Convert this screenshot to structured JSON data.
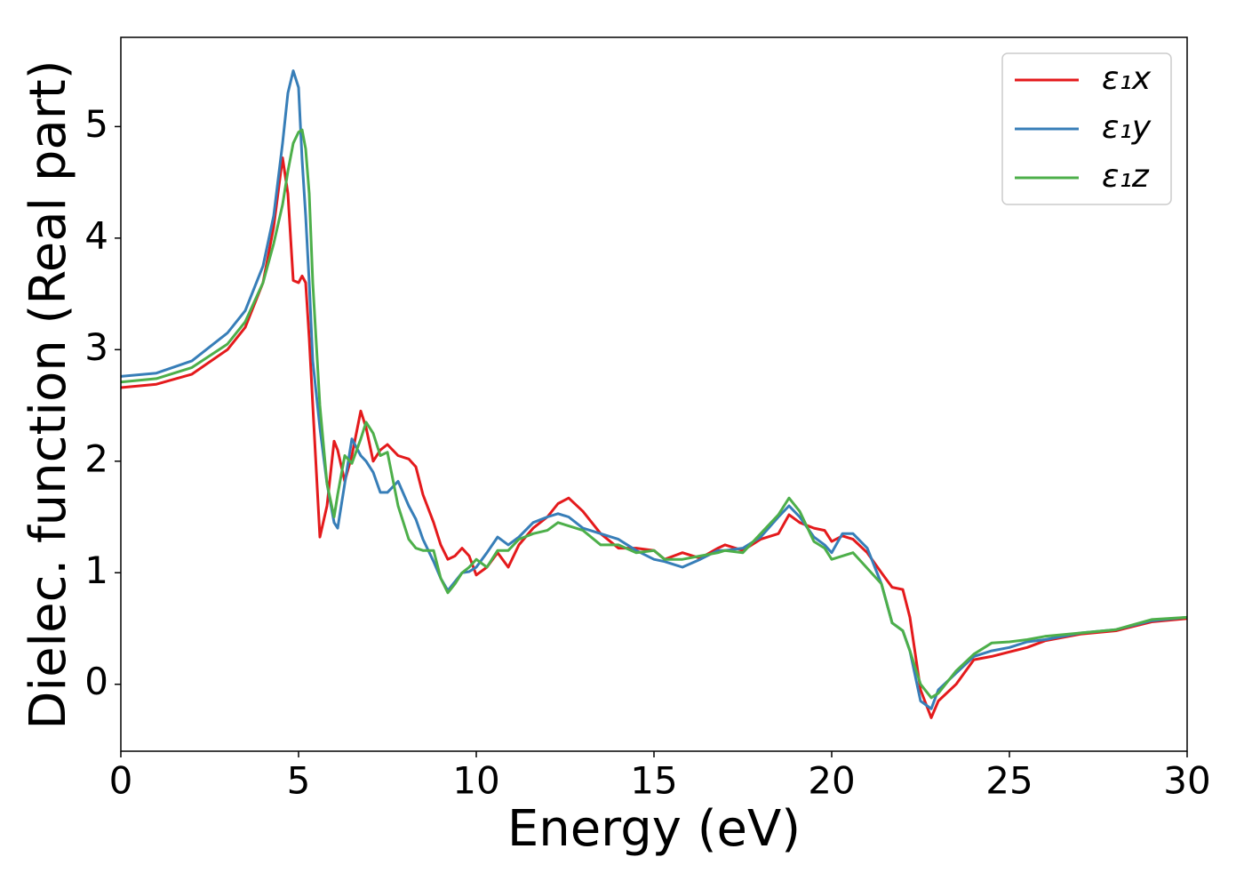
{
  "chart_data": {
    "type": "line",
    "xlabel": "Energy (eV)",
    "ylabel": "Dielec. function (Real part)",
    "x": [
      0,
      1,
      2,
      3,
      3.5,
      4,
      4.3,
      4.55,
      4.7,
      4.85,
      5.0,
      5.1,
      5.2,
      5.3,
      5.4,
      5.6,
      5.8,
      6.0,
      6.1,
      6.3,
      6.5,
      6.75,
      6.9,
      7.1,
      7.3,
      7.5,
      7.8,
      8.1,
      8.3,
      8.5,
      8.8,
      9.0,
      9.2,
      9.4,
      9.6,
      9.8,
      10.0,
      10.3,
      10.6,
      10.9,
      11.2,
      11.6,
      12.0,
      12.3,
      12.6,
      13.0,
      13.5,
      14.0,
      14.5,
      15.0,
      15.3,
      15.8,
      16.3,
      16.8,
      17.0,
      17.5,
      18.0,
      18.5,
      18.8,
      19.1,
      19.5,
      19.8,
      20.0,
      20.3,
      20.6,
      21.0,
      21.4,
      21.7,
      22.0,
      22.2,
      22.5,
      22.8,
      23.0,
      23.5,
      24.0,
      24.5,
      25.0,
      25.5,
      26.0,
      27.0,
      28.0,
      29.0,
      30.0
    ],
    "series": [
      {
        "name": "ε₁x",
        "color": "#e41a1c",
        "values": [
          2.66,
          2.69,
          2.78,
          3.0,
          3.2,
          3.6,
          4.1,
          4.72,
          4.4,
          3.62,
          3.6,
          3.66,
          3.6,
          3.1,
          2.5,
          1.32,
          1.6,
          2.18,
          2.1,
          1.82,
          2.05,
          2.45,
          2.3,
          2.0,
          2.1,
          2.15,
          2.05,
          2.02,
          1.95,
          1.7,
          1.45,
          1.25,
          1.12,
          1.15,
          1.22,
          1.15,
          0.98,
          1.05,
          1.18,
          1.05,
          1.25,
          1.4,
          1.5,
          1.62,
          1.67,
          1.55,
          1.35,
          1.22,
          1.22,
          1.2,
          1.12,
          1.18,
          1.13,
          1.22,
          1.25,
          1.2,
          1.3,
          1.35,
          1.52,
          1.45,
          1.4,
          1.38,
          1.28,
          1.33,
          1.3,
          1.18,
          1.0,
          0.87,
          0.85,
          0.6,
          -0.05,
          -0.3,
          -0.15,
          0.0,
          0.22,
          0.25,
          0.29,
          0.33,
          0.39,
          0.45,
          0.48,
          0.56,
          0.59
        ]
      },
      {
        "name": "ε₁y",
        "color": "#377eb8",
        "values": [
          2.76,
          2.79,
          2.9,
          3.15,
          3.35,
          3.75,
          4.2,
          4.85,
          5.3,
          5.5,
          5.35,
          4.7,
          4.2,
          3.6,
          2.9,
          2.3,
          1.8,
          1.45,
          1.4,
          1.8,
          2.2,
          2.05,
          2.0,
          1.9,
          1.72,
          1.72,
          1.82,
          1.6,
          1.48,
          1.3,
          1.1,
          0.95,
          0.84,
          0.92,
          1.0,
          1.01,
          1.05,
          1.18,
          1.32,
          1.25,
          1.32,
          1.45,
          1.5,
          1.53,
          1.5,
          1.4,
          1.35,
          1.3,
          1.2,
          1.12,
          1.1,
          1.05,
          1.12,
          1.2,
          1.2,
          1.22,
          1.32,
          1.5,
          1.6,
          1.5,
          1.32,
          1.25,
          1.18,
          1.35,
          1.35,
          1.22,
          0.9,
          0.55,
          0.48,
          0.3,
          -0.15,
          -0.22,
          -0.05,
          0.1,
          0.25,
          0.3,
          0.33,
          0.38,
          0.4,
          0.46,
          0.49,
          0.57,
          0.6
        ]
      },
      {
        "name": "ε₁z",
        "color": "#4daf4a",
        "values": [
          2.71,
          2.74,
          2.84,
          3.05,
          3.25,
          3.6,
          3.95,
          4.3,
          4.6,
          4.85,
          4.95,
          4.97,
          4.8,
          4.4,
          3.6,
          2.5,
          1.8,
          1.5,
          1.7,
          2.05,
          1.98,
          2.2,
          2.35,
          2.25,
          2.05,
          2.08,
          1.6,
          1.3,
          1.22,
          1.2,
          1.2,
          0.95,
          0.82,
          0.9,
          1.0,
          1.05,
          1.12,
          1.05,
          1.2,
          1.2,
          1.3,
          1.35,
          1.38,
          1.45,
          1.42,
          1.38,
          1.25,
          1.25,
          1.18,
          1.2,
          1.12,
          1.12,
          1.15,
          1.18,
          1.2,
          1.18,
          1.35,
          1.52,
          1.67,
          1.55,
          1.28,
          1.22,
          1.12,
          1.15,
          1.18,
          1.04,
          0.9,
          0.55,
          0.48,
          0.3,
          0.0,
          -0.12,
          -0.08,
          0.12,
          0.27,
          0.37,
          0.38,
          0.4,
          0.43,
          0.46,
          0.49,
          0.58,
          0.6
        ]
      }
    ],
    "xlim": [
      0,
      30
    ],
    "xticks": [
      0,
      5,
      10,
      15,
      20,
      25,
      30
    ],
    "ylim": [
      -0.6,
      5.8
    ],
    "yticks": [
      0,
      1,
      2,
      3,
      4,
      5
    ],
    "legend": "upper right"
  }
}
